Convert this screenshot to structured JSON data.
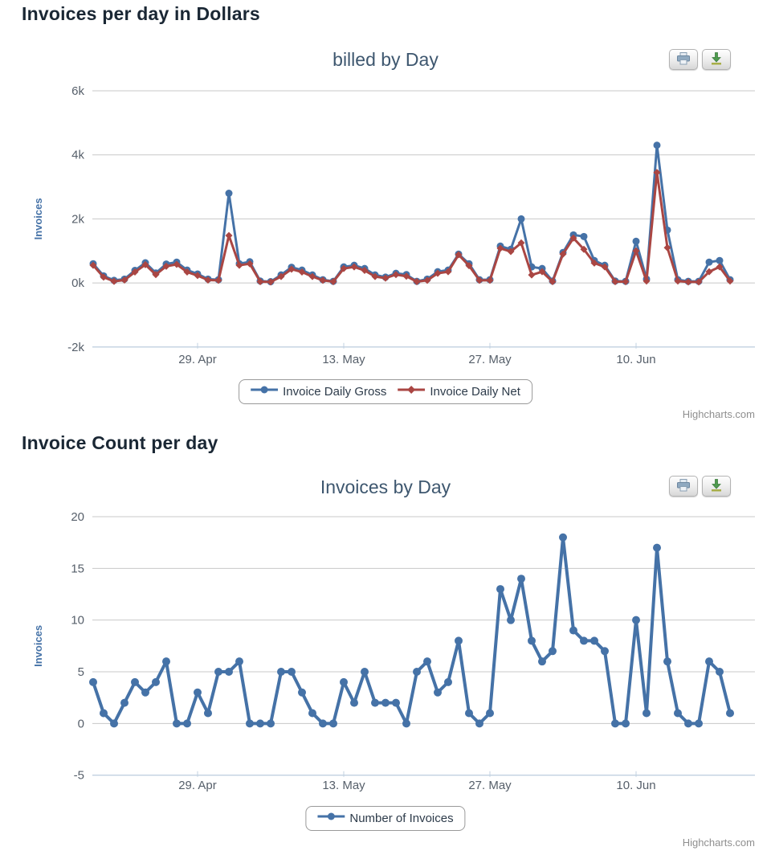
{
  "page": {
    "section1_title": "Invoices per day in Dollars",
    "section2_title": "Invoice Count per day",
    "credits_label": "Highcharts.com",
    "export_buttons": [
      {
        "icon": "printer-icon"
      },
      {
        "icon": "download-icon"
      }
    ]
  },
  "colors": {
    "series_blue": "#4572A7",
    "series_red": "#AA4643",
    "grid": "#C8C8C8",
    "axis_line": "#C0D0E0",
    "title": "#3E576F"
  },
  "chart_data": [
    {
      "type": "line",
      "title": "billed by Day",
      "ylabel": "Invoices",
      "grid": true,
      "legend_position": "bottom",
      "x_tick_labels": [
        "29. Apr",
        "13. May",
        "27. May",
        "10. Jun"
      ],
      "x_tick_indices": [
        10,
        24,
        38,
        52
      ],
      "y_axis": {
        "min": -2000,
        "max": 6000,
        "tick_step": 2000,
        "tick_labels": [
          "6k",
          "4k",
          "2k",
          "0k",
          "-2k"
        ]
      },
      "series": [
        {
          "name": "Invoice Daily Gross",
          "color": "#4572A7",
          "marker": "circle",
          "values": [
            600,
            220,
            80,
            120,
            390,
            630,
            310,
            590,
            650,
            400,
            280,
            120,
            100,
            2800,
            600,
            660,
            60,
            40,
            250,
            490,
            400,
            250,
            100,
            50,
            500,
            550,
            450,
            250,
            180,
            300,
            260,
            50,
            120,
            350,
            400,
            900,
            600,
            100,
            100,
            1150,
            1050,
            2000,
            500,
            450,
            60,
            950,
            1500,
            1450,
            700,
            550,
            60,
            50,
            1300,
            120,
            4300,
            1650,
            100,
            50,
            50,
            650,
            700,
            100
          ]
        },
        {
          "name": "Invoice Daily Net",
          "color": "#AA4643",
          "marker": "diamond",
          "values": [
            550,
            180,
            50,
            90,
            340,
            570,
            260,
            520,
            580,
            340,
            230,
            90,
            80,
            1480,
            550,
            600,
            40,
            30,
            200,
            430,
            340,
            200,
            80,
            40,
            450,
            500,
            390,
            200,
            150,
            260,
            210,
            40,
            80,
            300,
            350,
            880,
            540,
            80,
            80,
            1080,
            980,
            1250,
            250,
            350,
            40,
            900,
            1400,
            1050,
            620,
            500,
            40,
            40,
            1000,
            60,
            3450,
            1100,
            60,
            30,
            30,
            350,
            500,
            60
          ]
        }
      ]
    },
    {
      "type": "line",
      "title": "Invoices by Day",
      "ylabel": "Invoices",
      "grid": true,
      "legend_position": "bottom",
      "x_tick_labels": [
        "29. Apr",
        "13. May",
        "27. May",
        "10. Jun"
      ],
      "x_tick_indices": [
        10,
        24,
        38,
        52
      ],
      "y_axis": {
        "min": -5,
        "max": 20,
        "tick_step": 5,
        "tick_labels": [
          "20",
          "15",
          "10",
          "5",
          "0",
          "-5"
        ]
      },
      "series": [
        {
          "name": "Number of Invoices",
          "color": "#4572A7",
          "marker": "circle",
          "values": [
            4,
            1,
            0,
            2,
            4,
            3,
            4,
            6,
            0,
            0,
            3,
            1,
            5,
            5,
            6,
            0,
            0,
            0,
            5,
            5,
            3,
            1,
            0,
            0,
            4,
            2,
            5,
            2,
            2,
            2,
            0,
            5,
            6,
            3,
            4,
            8,
            1,
            0,
            1,
            13,
            10,
            14,
            8,
            6,
            7,
            18,
            9,
            8,
            8,
            7,
            0,
            0,
            10,
            1,
            17,
            6,
            1,
            0,
            0,
            6,
            5,
            1
          ]
        }
      ]
    }
  ]
}
